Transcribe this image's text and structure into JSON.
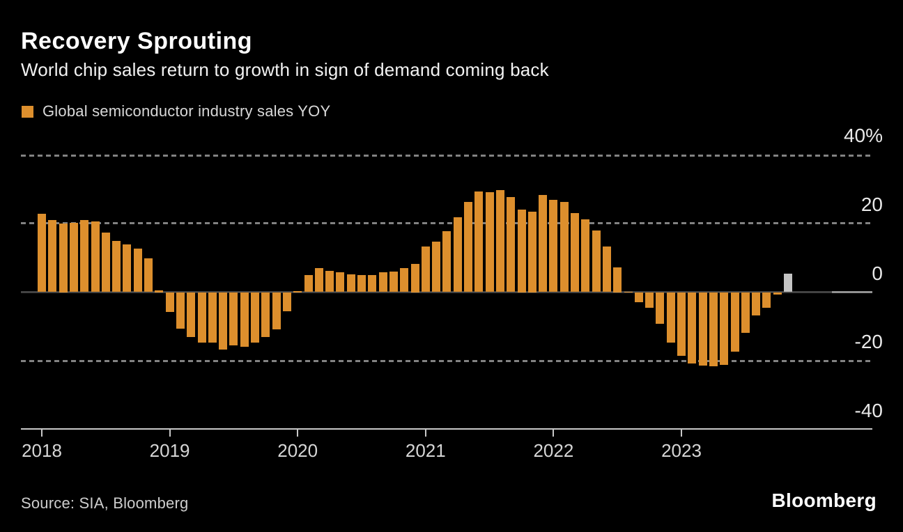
{
  "header": {
    "title": "Recovery Sprouting",
    "subtitle": "World chip sales return to growth in sign of demand coming back"
  },
  "legend": {
    "label": "Global semiconductor industry sales YOY",
    "swatch_color": "#DD8F2D"
  },
  "footer": {
    "source": "Source: SIA, Bloomberg",
    "logo": "Bloomberg"
  },
  "colors": {
    "background": "#000000",
    "bar": "#DD8F2D",
    "bar_highlight": "#C4C4C4",
    "gridline_dashed": "#828282",
    "zero_line": "#434343",
    "zero_line_right_segment": "#929292",
    "axis_line": "#C8C8C8",
    "y_label_text": "#E8E8E8",
    "year_label_text": "#D6D6D6",
    "title_text": "#FFFFFF",
    "subtitle_text": "#F2F2F2",
    "legend_text": "#D9D9D9",
    "source_text": "#CDCDCD",
    "logo_text": "#FFFFFF"
  },
  "chart_data": {
    "type": "bar",
    "title": "Recovery Sprouting",
    "subtitle": "World chip sales return to growth in sign of demand coming back",
    "unit": "%",
    "frequency": "monthly",
    "x_range": [
      "2018-01",
      "2023-11"
    ],
    "ylim": [
      -40,
      40
    ],
    "grid": "horizontal dashed gridlines at 40, 20 and -20; solid gray zero line; solid light axis line at bottom (-40 level)",
    "y_axis": {
      "side": "right",
      "tick_values": [
        40,
        20,
        0,
        -20,
        -40
      ],
      "tick_labels": [
        "40%",
        "20",
        "0",
        "-20",
        "-40"
      ]
    },
    "x_axis": {
      "tick_labels": [
        "2018",
        "2019",
        "2020",
        "2021",
        "2022",
        "2023"
      ],
      "tick_position": "January of each year"
    },
    "dashed_grid_values": [
      40,
      20,
      -20
    ],
    "series": [
      {
        "name": "Global semiconductor industry sales YOY",
        "color": "#DD8F2D",
        "values_by_year": {
          "2018": [
            22.7,
            21.0,
            20.0,
            20.2,
            21.0,
            20.5,
            17.4,
            14.9,
            13.8,
            12.7,
            9.8,
            0.6
          ],
          "2019": [
            -5.7,
            -10.6,
            -13.0,
            -14.6,
            -14.6,
            -16.8,
            -15.5,
            -15.9,
            -14.6,
            -13.1,
            -10.8,
            -5.5
          ],
          "2020": [
            0.3,
            5.0,
            6.9,
            6.1,
            5.8,
            5.1,
            4.9,
            4.9,
            5.8,
            6.0,
            7.0,
            8.3
          ],
          "2021": [
            13.2,
            14.7,
            17.8,
            21.7,
            26.2,
            29.2,
            29.0,
            29.7,
            27.6,
            24.0,
            23.5,
            28.3
          ],
          "2022": [
            26.8,
            26.2,
            23.0,
            21.1,
            18.0,
            13.3,
            7.3,
            0.1,
            -3.0,
            -4.6,
            -9.2,
            -14.7
          ],
          "2023": [
            -18.5,
            -20.7,
            -21.3,
            -21.6,
            -21.1,
            -17.3,
            -11.8,
            -6.8,
            -4.5,
            -0.7,
            5.3
          ]
        }
      }
    ],
    "highlight": {
      "month": "2023-11",
      "value": 5.3,
      "color": "#C4C4C4",
      "note": "latest month drawn as gray bar"
    },
    "legend_entries": [
      "Global semiconductor industry sales YOY"
    ],
    "legend_position": "top-left"
  }
}
